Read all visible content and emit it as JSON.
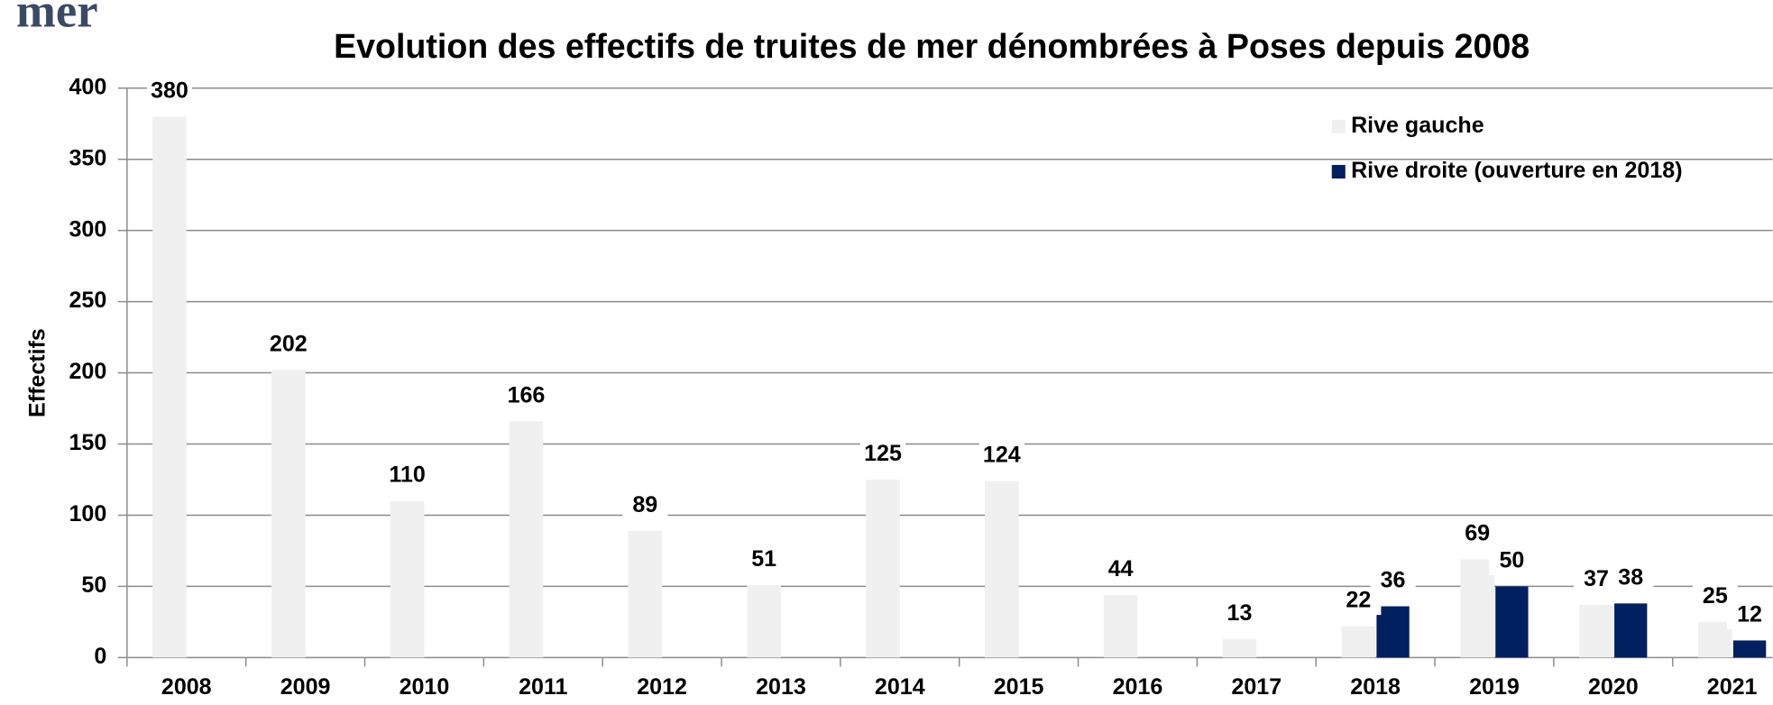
{
  "page_fragment": "mer",
  "chart_data": {
    "type": "bar",
    "title": "Evolution des effectifs de truites de mer dénombrées à Poses depuis 2008",
    "y_label": "Effectifs",
    "categories": [
      "2008",
      "2009",
      "2010",
      "2011",
      "2012",
      "2013",
      "2014",
      "2015",
      "2016",
      "2017",
      "2018",
      "2019",
      "2020",
      "2021"
    ],
    "series": [
      {
        "name": "Rive gauche",
        "color": "#f0f0f0",
        "values": [
          380,
          202,
          110,
          166,
          89,
          51,
          125,
          124,
          44,
          13,
          22,
          69,
          37,
          25
        ]
      },
      {
        "name": "Rive droite (ouverture en 2018)",
        "color": "#002060",
        "values": [
          null,
          null,
          null,
          null,
          null,
          null,
          null,
          null,
          null,
          null,
          36,
          50,
          38,
          12
        ]
      }
    ],
    "ylim": [
      0,
      400
    ],
    "yticks": [
      0,
      50,
      100,
      150,
      200,
      250,
      300,
      350,
      400
    ],
    "grid": true,
    "legend": "upper right",
    "data_labels": true
  }
}
